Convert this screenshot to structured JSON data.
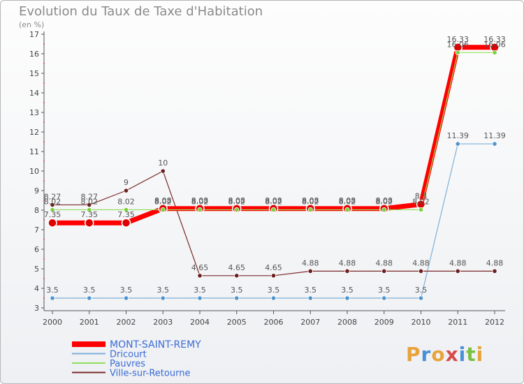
{
  "chart_data": {
    "type": "line",
    "title": "Evolution du Taux de Taxe d'Habitation",
    "subtitle": "(en %)",
    "x": [
      "2000",
      "2001",
      "2002",
      "2003",
      "2004",
      "2005",
      "2006",
      "2007",
      "2008",
      "2009",
      "2010",
      "2011",
      "2012"
    ],
    "ylim": [
      3,
      17
    ],
    "yticks": [
      3,
      4,
      5,
      6,
      7,
      8,
      9,
      10,
      11,
      12,
      13,
      14,
      15,
      16,
      17
    ],
    "grid": false,
    "legend_position": "bottom-left",
    "series": [
      {
        "name": "MONT-SAINT-REMY",
        "color": "#ff0000",
        "marker": "#dd0000",
        "values": [
          7.35,
          7.35,
          7.35,
          8.08,
          8.08,
          8.08,
          8.08,
          8.08,
          8.08,
          8.08,
          8.3,
          16.33,
          16.33
        ],
        "labels": [
          "7.35",
          "7.35",
          "7.35",
          "8.08",
          "8.08",
          "8.08",
          "8.08",
          "8.08",
          "8.08",
          "8.08",
          "8.3",
          "16.33",
          "16.33"
        ]
      },
      {
        "name": "Dricourt",
        "color": "#7fb0d8",
        "marker": "#4f94cd",
        "values": [
          3.5,
          3.5,
          3.5,
          3.5,
          3.5,
          3.5,
          3.5,
          3.5,
          3.5,
          3.5,
          3.5,
          11.39,
          11.39
        ],
        "labels": [
          "3.5",
          "3.5",
          "3.5",
          "3.5",
          "3.5",
          "3.5",
          "3.5",
          "3.5",
          "3.5",
          "3.5",
          "3.5",
          "11.39",
          "11.39"
        ]
      },
      {
        "name": "Pauvres",
        "color": "#8fe05a",
        "marker": "#7ad13a",
        "values": [
          8.02,
          8.02,
          8.02,
          8.02,
          8.02,
          8.02,
          8.02,
          8.02,
          8.02,
          8.02,
          8.02,
          16.06,
          16.06
        ],
        "labels": [
          "8.02",
          "8.02",
          "8.02",
          "8.02",
          "8.02",
          "8.02",
          "8.02",
          "8.02",
          "8.02",
          "8.02",
          "8.02",
          "16.06",
          "16.06"
        ]
      },
      {
        "name": "Ville-sur-Retourne",
        "color": "#7a2a2a",
        "marker": "#6b1f1f",
        "values": [
          8.27,
          8.27,
          9,
          10,
          4.65,
          4.65,
          4.65,
          4.88,
          4.88,
          4.88,
          4.88,
          4.88,
          4.88
        ],
        "labels": [
          "8.27",
          "8.27",
          "9",
          "10",
          "4.65",
          "4.65",
          "4.65",
          "4.88",
          "4.88",
          "4.88",
          "4.88",
          "4.88",
          "4.88"
        ]
      }
    ]
  },
  "brand": {
    "text": "Proxiti",
    "letters": [
      "P",
      "r",
      "o",
      "x",
      "i",
      "t",
      "i"
    ],
    "colors": [
      "#e8a33a",
      "#4a8fd8",
      "#e8a33a",
      "#d84a4a",
      "#4a8fd8",
      "#7ac143",
      "#e8a33a"
    ]
  }
}
